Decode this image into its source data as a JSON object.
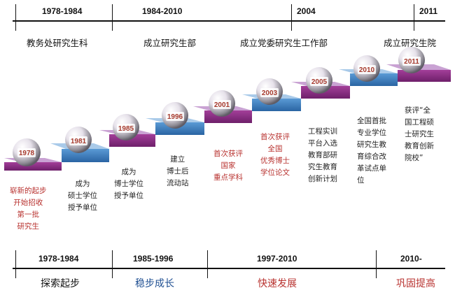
{
  "colors": {
    "line": "#111111",
    "step_purple": "#8e2a87",
    "step_blue": "#3b7fc1",
    "step_light_purple": "#c79ad0",
    "step_light_blue": "#a6c7e6",
    "ball_label": "#a63a2d",
    "red_text": "#b8322f",
    "blue_text": "#1f4f92"
  },
  "top_periods": [
    "1978-1984",
    "1984-2010",
    "2004",
    "2011"
  ],
  "milestones": [
    "教务处研究生科",
    "成立研究生部",
    "成立党委研究生工作部",
    "成立研究生院"
  ],
  "years": [
    "1978",
    "1981",
    "1985",
    "1996",
    "2001",
    "2003",
    "2005",
    "2010",
    "2011"
  ],
  "descriptions": [
    [
      "崭新的起步",
      "开始招收",
      "第一批",
      "研究生"
    ],
    [
      "成为",
      "硕士学位",
      "授予单位"
    ],
    [
      "成为",
      "博士学位",
      "授予单位"
    ],
    [
      "建立",
      "博士后",
      "流动站"
    ],
    [
      "首次获评",
      "国家",
      "重点学科"
    ],
    [
      "首次获评",
      "全国",
      "优秀博士",
      "学位论文"
    ],
    [
      "工程实训",
      "平台入选",
      "教育部研",
      "究生教育",
      "创新计划"
    ],
    [
      "全国首批",
      "专业学位",
      "研究生教",
      "育综合改",
      "革试点单",
      "位"
    ],
    [
      "获评“全",
      "国工程硕",
      "士研究生",
      "教育创新",
      "院校”"
    ]
  ],
  "bottom_periods": [
    "1978-1984",
    "1985-1996",
    "1997-2010",
    "2010-"
  ],
  "phases": [
    "探索起步",
    "稳步成长",
    "快速发展",
    "巩固提高"
  ]
}
